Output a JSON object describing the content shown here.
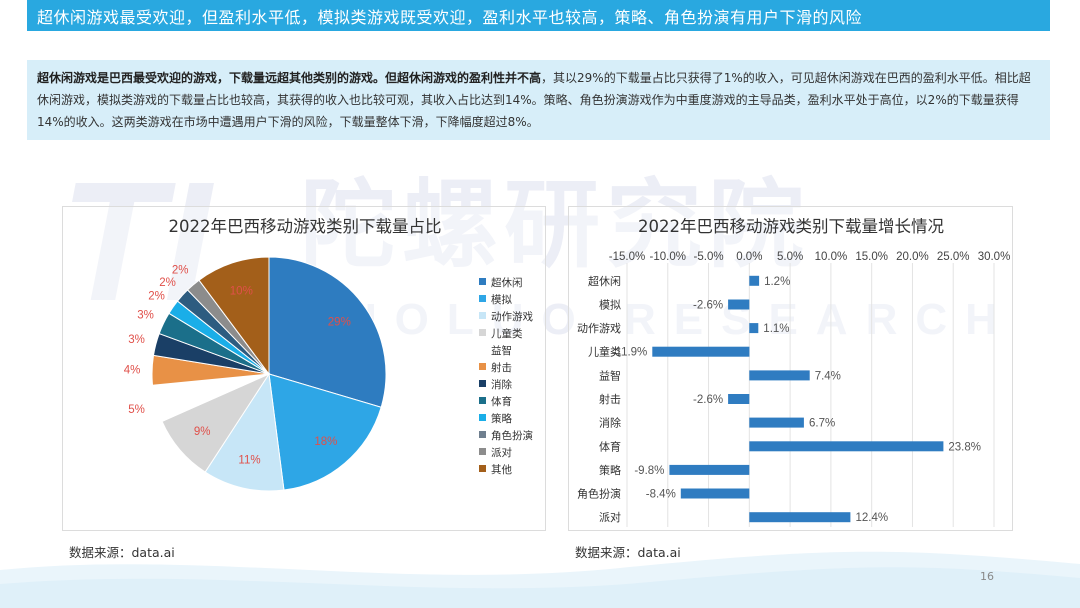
{
  "header": {
    "title": "超休闲游戏最受欢迎，但盈利水平低，模拟类游戏既受欢迎，盈利水平也较高，策略、角色扮演有用户下滑的风险"
  },
  "summary": {
    "bold_part": "超休闲游戏是巴西最受欢迎的游戏，下载量远超其他类别的游戏。但超休闲游戏的盈利性并不高",
    "rest_part": "，其以29%的下载量占比只获得了1%的收入，可见超休闲游戏在巴西的盈利水平低。相比超休闲游戏，模拟类游戏的下载量占比也较高，其获得的收入也比较可观，其收入占比达到14%。策略、角色扮演游戏作为中重度游戏的主导品类，盈利水平处于高位，以2%的下载量获得14%的收入。这两类游戏在市场中遭遇用户下滑的风险，下载量整体下滑，下降幅度超过8%。"
  },
  "watermark": {
    "logo": "TL",
    "cn": "陀螺研究院",
    "en": "TUOLUO RESEARCH"
  },
  "colors": {
    "title_bar": "#29a8e0",
    "summary_bg": "#d7eef9",
    "bar": "#2f7cc1",
    "label_red": "#e0504a"
  },
  "chart_data": [
    {
      "type": "pie",
      "title": "2022年巴西移动游戏类别下载量占比",
      "legend_position": "right",
      "slices": [
        {
          "name": "超休闲",
          "value": 29,
          "label": "29%",
          "color": "#2e7cc0"
        },
        {
          "name": "模拟",
          "value": 18,
          "label": "18%",
          "color": "#2ea6e6"
        },
        {
          "name": "动作游戏",
          "value": 11,
          "label": "11%",
          "color": "#c7e6f7"
        },
        {
          "name": "儿童类益智",
          "value": 9,
          "label": "9%",
          "color": "#d6d6d6"
        },
        {
          "name": "射击",
          "value": 5,
          "label": "5%",
          "color": "#ffffff"
        },
        {
          "name": "消除",
          "value": 4,
          "label": "4%",
          "color": "#e89146"
        },
        {
          "name": "体育",
          "value": 3,
          "label": "3%",
          "color": "#1a3f66"
        },
        {
          "name": "策略",
          "value": 3,
          "label": "3%",
          "color": "#1b6f8a"
        },
        {
          "name": "角色扮演",
          "value": 2,
          "label": "2%",
          "color": "#1aaee8"
        },
        {
          "name": "派对",
          "value": 2,
          "label": "2%",
          "color": "#2d5c80"
        },
        {
          "name": "其他",
          "value": 2,
          "label": "2%",
          "color": "#8c8c8c"
        },
        {
          "name": "其他2",
          "value": 10,
          "label": "10%",
          "color": "#a35f1a"
        }
      ],
      "legend": [
        {
          "label": "超休闲",
          "color": "#2e7cc0"
        },
        {
          "label": "模拟",
          "color": "#2ea6e6"
        },
        {
          "label": "动作游戏",
          "color": "#c7e6f7"
        },
        {
          "label": "儿童类",
          "color": "#d6d6d6"
        },
        {
          "label": "益智",
          "color": ""
        },
        {
          "label": "射击",
          "color": "#e89146"
        },
        {
          "label": "消除",
          "color": "#1a3f66"
        },
        {
          "label": "体育",
          "color": "#1b6f8a"
        },
        {
          "label": "策略",
          "color": "#1aaee8"
        },
        {
          "label": "角色扮演",
          "color": "#6f7f8f"
        },
        {
          "label": "派对",
          "color": "#8c8c8c"
        },
        {
          "label": "其他",
          "color": "#a35f1a"
        }
      ]
    },
    {
      "type": "bar",
      "orientation": "horizontal",
      "title": "2022年巴西移动游戏类别下载量增长情况",
      "categories": [
        "超休闲",
        "模拟",
        "动作游戏",
        "儿童类",
        "益智",
        "射击",
        "消除",
        "体育",
        "策略",
        "角色扮演",
        "派对"
      ],
      "values": [
        1.2,
        -2.6,
        1.1,
        -11.9,
        7.4,
        -2.6,
        6.7,
        23.8,
        -9.8,
        -8.4,
        12.4
      ],
      "value_labels": [
        "1.2%",
        "-2.6%",
        "1.1%",
        "-11.9%",
        "7.4%",
        "-2.6%",
        "6.7%",
        "23.8%",
        "-9.8%",
        "-8.4%",
        "12.4%"
      ],
      "xlim": [
        -15,
        30
      ],
      "x_ticks": [
        "-15.0%",
        "-10.0%",
        "-5.0%",
        "0.0%",
        "5.0%",
        "10.0%",
        "15.0%",
        "20.0%",
        "25.0%",
        "30.0%"
      ],
      "grid": true,
      "color": "#2f7cc1"
    }
  ],
  "footer": {
    "source_left": "数据来源：data.ai",
    "source_right": "数据来源：data.ai",
    "page_number": "16"
  }
}
